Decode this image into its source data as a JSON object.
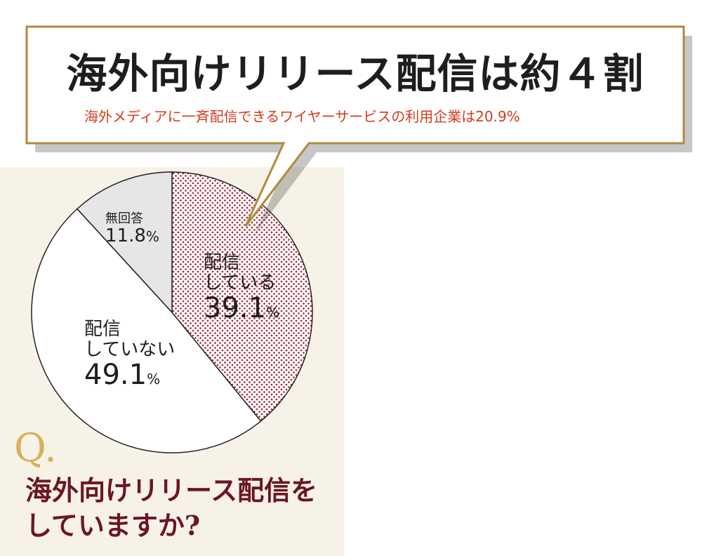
{
  "headline": "海外向けリリース配信は約４割",
  "subheadline": "海外メディアに一斉配信できるワイヤーサービスの利用企業は20.9%",
  "question": {
    "mark": "Q.",
    "line1": "海外向けリリース配信を",
    "line2": "していますか?"
  },
  "colors": {
    "panel_bg": "#f7f2e7",
    "callout_border": "#b08a3e",
    "subhead": "#d43c1c",
    "question": "#6b1620",
    "q_mark": "#d8b15a",
    "dots": "#a03040",
    "slice_gray": "#e6e6e6",
    "slice_white": "#ffffff"
  },
  "chart_data": {
    "type": "pie",
    "start": "12 o'clock",
    "direction": "clockwise",
    "slices": [
      {
        "label_line1": "配信",
        "label_line2": "している",
        "value": 39.1,
        "value_text": "39.1",
        "unit": "%",
        "fill": "dots"
      },
      {
        "label_line1": "配信",
        "label_line2": "していない",
        "value": 49.1,
        "value_text": "49.1",
        "unit": "%",
        "fill": "white"
      },
      {
        "label_line1": "無回答",
        "label_line2": "",
        "value": 11.8,
        "value_text": "11.8",
        "unit": "%",
        "fill": "gray"
      }
    ]
  }
}
